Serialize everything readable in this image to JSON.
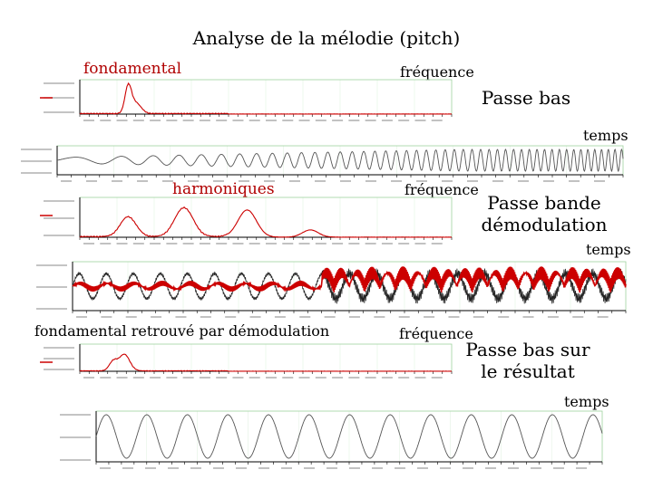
{
  "title": "Analyse de la mélodie (pitch)",
  "labels": {
    "fondamental": "fondamental",
    "frequence_1": "fréquence",
    "passe_bas": "Passe bas",
    "temps_1": "temps",
    "harmoniques": "harmoniques",
    "frequence_2": "fréquence",
    "passe_bande_demodulation": "Passe bande démodulation",
    "temps_2": "temps",
    "fondamental_retrouve": "fondamental retrouvé par démodulation",
    "frequence_3": "fréquence",
    "passe_bas_resultat": "Passe bas sur le résultat",
    "temps_3": "temps"
  },
  "colors": {
    "spectrum_red": "#cc0000",
    "signal_gray": "#555555",
    "grid_green": "#9fd39f",
    "axis_black": "#000000"
  }
}
